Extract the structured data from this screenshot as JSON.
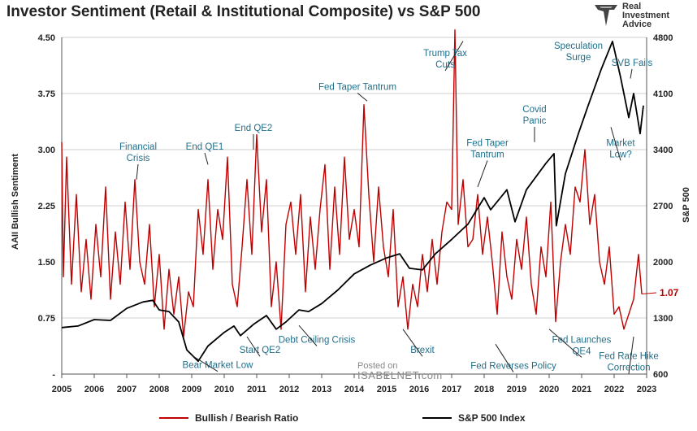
{
  "title": "Investor Sentiment (Retail & Institutional Composite) vs S&P 500",
  "logo": {
    "line1": "Real",
    "line2": "Investment",
    "line3": "Advice"
  },
  "watermark": {
    "line1": "Posted on",
    "line2": "ISABELNET.com"
  },
  "colors": {
    "ratio": "#c00000",
    "sp500": "#000000",
    "annotation": "#1f6f8b",
    "last_value": "#c00000"
  },
  "chart_data": {
    "type": "line",
    "xlabel": "",
    "ylabel": "AAII Bullish Sentiment",
    "y2label": "S&P 500",
    "x_range": [
      2005,
      2023
    ],
    "ylim": [
      0,
      4.5
    ],
    "y2lim": [
      600,
      4800
    ],
    "x_ticks": [
      "2005",
      "2006",
      "2007",
      "2008",
      "2009",
      "2010",
      "2011",
      "2012",
      "2013",
      "2014",
      "2015",
      "2016",
      "2017",
      "2018",
      "2019",
      "2020",
      "2021",
      "2022",
      "2023"
    ],
    "y_ticks": [
      "-",
      "0.75",
      "1.50",
      "2.25",
      "3.00",
      "3.75",
      "4.50"
    ],
    "y2_ticks": [
      "600",
      "1300",
      "2000",
      "2700",
      "3400",
      "4100",
      "4800"
    ],
    "grid": true,
    "legend_position": "bottom",
    "last_value_label": "1.07",
    "series": [
      {
        "name": "Bullish / Bearish Ratio",
        "axis": "left",
        "x": [
          2005.0,
          2005.05,
          2005.15,
          2005.3,
          2005.45,
          2005.6,
          2005.75,
          2005.9,
          2006.05,
          2006.2,
          2006.35,
          2006.5,
          2006.65,
          2006.8,
          2006.95,
          2007.1,
          2007.25,
          2007.4,
          2007.55,
          2007.7,
          2007.85,
          2008.0,
          2008.15,
          2008.3,
          2008.45,
          2008.6,
          2008.75,
          2008.9,
          2009.05,
          2009.2,
          2009.35,
          2009.5,
          2009.65,
          2009.8,
          2009.95,
          2010.1,
          2010.25,
          2010.4,
          2010.55,
          2010.7,
          2010.85,
          2011.0,
          2011.15,
          2011.3,
          2011.45,
          2011.6,
          2011.75,
          2011.9,
          2012.05,
          2012.2,
          2012.35,
          2012.5,
          2012.65,
          2012.8,
          2012.95,
          2013.1,
          2013.25,
          2013.4,
          2013.55,
          2013.7,
          2013.85,
          2014.0,
          2014.15,
          2014.3,
          2014.45,
          2014.6,
          2014.75,
          2014.9,
          2015.05,
          2015.2,
          2015.35,
          2015.5,
          2015.65,
          2015.8,
          2015.95,
          2016.1,
          2016.25,
          2016.4,
          2016.55,
          2016.7,
          2016.85,
          2017.0,
          2017.1,
          2017.2,
          2017.35,
          2017.5,
          2017.65,
          2017.8,
          2017.95,
          2018.1,
          2018.25,
          2018.4,
          2018.55,
          2018.7,
          2018.85,
          2019.0,
          2019.15,
          2019.3,
          2019.45,
          2019.6,
          2019.75,
          2019.9,
          2020.05,
          2020.2,
          2020.35,
          2020.5,
          2020.65,
          2020.8,
          2020.95,
          2021.1,
          2021.25,
          2021.4,
          2021.55,
          2021.7,
          2021.85,
          2022.0,
          2022.15,
          2022.3,
          2022.45,
          2022.6,
          2022.75,
          2022.85
        ],
        "y": [
          3.1,
          1.3,
          2.9,
          1.2,
          2.4,
          1.1,
          1.8,
          1.0,
          2.0,
          1.3,
          2.5,
          1.0,
          1.9,
          1.2,
          2.3,
          1.4,
          2.6,
          1.5,
          1.2,
          2.0,
          0.9,
          1.6,
          0.6,
          1.4,
          0.8,
          1.3,
          0.5,
          1.1,
          0.9,
          2.2,
          1.6,
          2.6,
          1.4,
          2.2,
          1.8,
          2.9,
          1.2,
          0.9,
          1.7,
          2.6,
          1.6,
          3.2,
          1.9,
          2.6,
          0.9,
          1.5,
          0.6,
          2.0,
          2.3,
          1.6,
          2.4,
          1.1,
          2.1,
          1.4,
          2.2,
          2.8,
          1.4,
          2.5,
          1.6,
          2.9,
          1.8,
          2.2,
          1.7,
          3.6,
          2.4,
          1.5,
          2.5,
          1.7,
          1.3,
          2.2,
          0.9,
          1.3,
          0.6,
          1.2,
          0.9,
          1.6,
          1.1,
          1.8,
          1.2,
          1.9,
          2.3,
          2.2,
          4.6,
          2.0,
          2.6,
          1.7,
          1.8,
          2.4,
          1.6,
          2.1,
          1.5,
          0.8,
          1.9,
          1.3,
          1.0,
          1.8,
          1.4,
          2.1,
          1.2,
          0.8,
          1.7,
          1.3,
          2.3,
          0.7,
          1.5,
          2.0,
          1.6,
          2.5,
          2.3,
          3.0,
          2.0,
          2.4,
          1.5,
          1.2,
          1.7,
          0.8,
          0.9,
          0.6,
          0.8,
          1.0,
          1.6,
          1.07
        ]
      },
      {
        "name": "S&P 500 Index",
        "axis": "right",
        "x": [
          2005.0,
          2005.5,
          2006.0,
          2006.5,
          2007.0,
          2007.5,
          2007.8,
          2008.0,
          2008.3,
          2008.6,
          2008.85,
          2009.2,
          2009.5,
          2010.0,
          2010.3,
          2010.5,
          2010.9,
          2011.3,
          2011.6,
          2011.9,
          2012.3,
          2012.6,
          2013.0,
          2013.5,
          2014.0,
          2014.5,
          2015.0,
          2015.4,
          2015.7,
          2016.1,
          2016.5,
          2017.0,
          2017.5,
          2018.0,
          2018.2,
          2018.7,
          2018.95,
          2019.3,
          2019.9,
          2020.15,
          2020.22,
          2020.5,
          2020.9,
          2021.2,
          2021.6,
          2021.95,
          2022.2,
          2022.45,
          2022.6,
          2022.8,
          2022.9
        ],
        "y": [
          1180,
          1200,
          1280,
          1270,
          1420,
          1500,
          1520,
          1400,
          1380,
          1250,
          900,
          760,
          950,
          1120,
          1200,
          1080,
          1220,
          1330,
          1160,
          1250,
          1400,
          1380,
          1480,
          1650,
          1850,
          1960,
          2050,
          2100,
          1920,
          1900,
          2100,
          2280,
          2470,
          2800,
          2650,
          2900,
          2500,
          2900,
          3230,
          3350,
          2450,
          3100,
          3600,
          3950,
          4400,
          4750,
          4300,
          3800,
          4100,
          3600,
          3950
        ]
      }
    ],
    "annotations": [
      "Financial Crisis",
      "End QE1",
      "End QE2",
      "Fed Taper Tantrum",
      "Trump Tax Cuts",
      "Speculation Surge",
      "SVB Fails",
      "Covid Panic",
      "Fed Taper Tantrum",
      "Market Low?",
      "Bear Market Low",
      "Start QE2",
      "Debt Ceiling Crisis",
      "Brexit",
      "Fed Reverses Policy",
      "Fed Launches QE4",
      "Fed Rate Hike Correction"
    ]
  }
}
